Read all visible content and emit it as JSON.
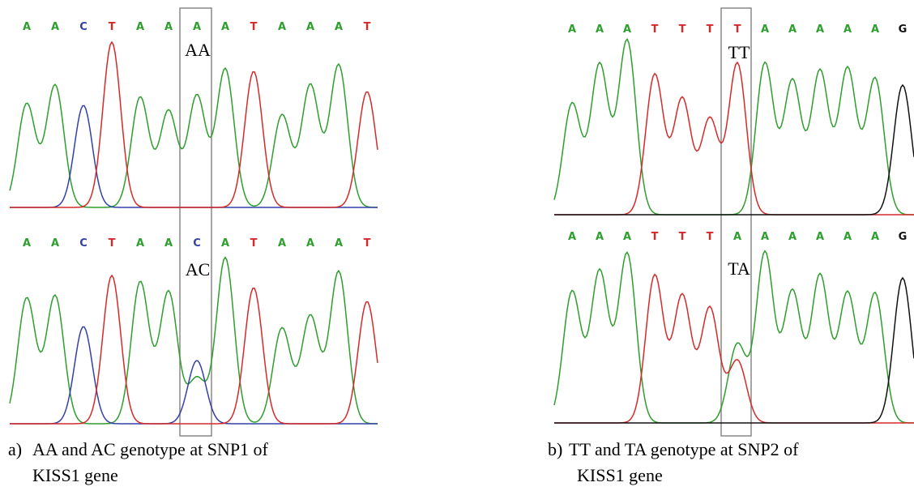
{
  "panels": [
    {
      "tracks": [
        {
          "bases": [
            "A",
            "A",
            "C",
            "T",
            "A",
            "A",
            "A",
            "A",
            "T",
            "A",
            "A",
            "A",
            "T"
          ],
          "genotype": "AA"
        },
        {
          "bases": [
            "A",
            "A",
            "C",
            "T",
            "A",
            "A",
            "C",
            "A",
            "T",
            "A",
            "A",
            "A",
            "T"
          ],
          "genotype": "AC"
        }
      ],
      "caption": [
        "a)",
        "AA and AC genotype at SNP1 of",
        "KISS1 gene"
      ]
    },
    {
      "tracks": [
        {
          "bases": [
            "A",
            "A",
            "A",
            "T",
            "T",
            "T",
            "T",
            "A",
            "A",
            "A",
            "A",
            "A",
            "G"
          ],
          "genotype": "TT"
        },
        {
          "bases": [
            "A",
            "A",
            "A",
            "T",
            "T",
            "T",
            "A",
            "A",
            "A",
            "A",
            "A",
            "A",
            "G"
          ],
          "genotype": "TA"
        }
      ],
      "caption": [
        "b)",
        "TT and TA genotype at SNP2 of",
        "KISS1 gene"
      ]
    }
  ]
}
